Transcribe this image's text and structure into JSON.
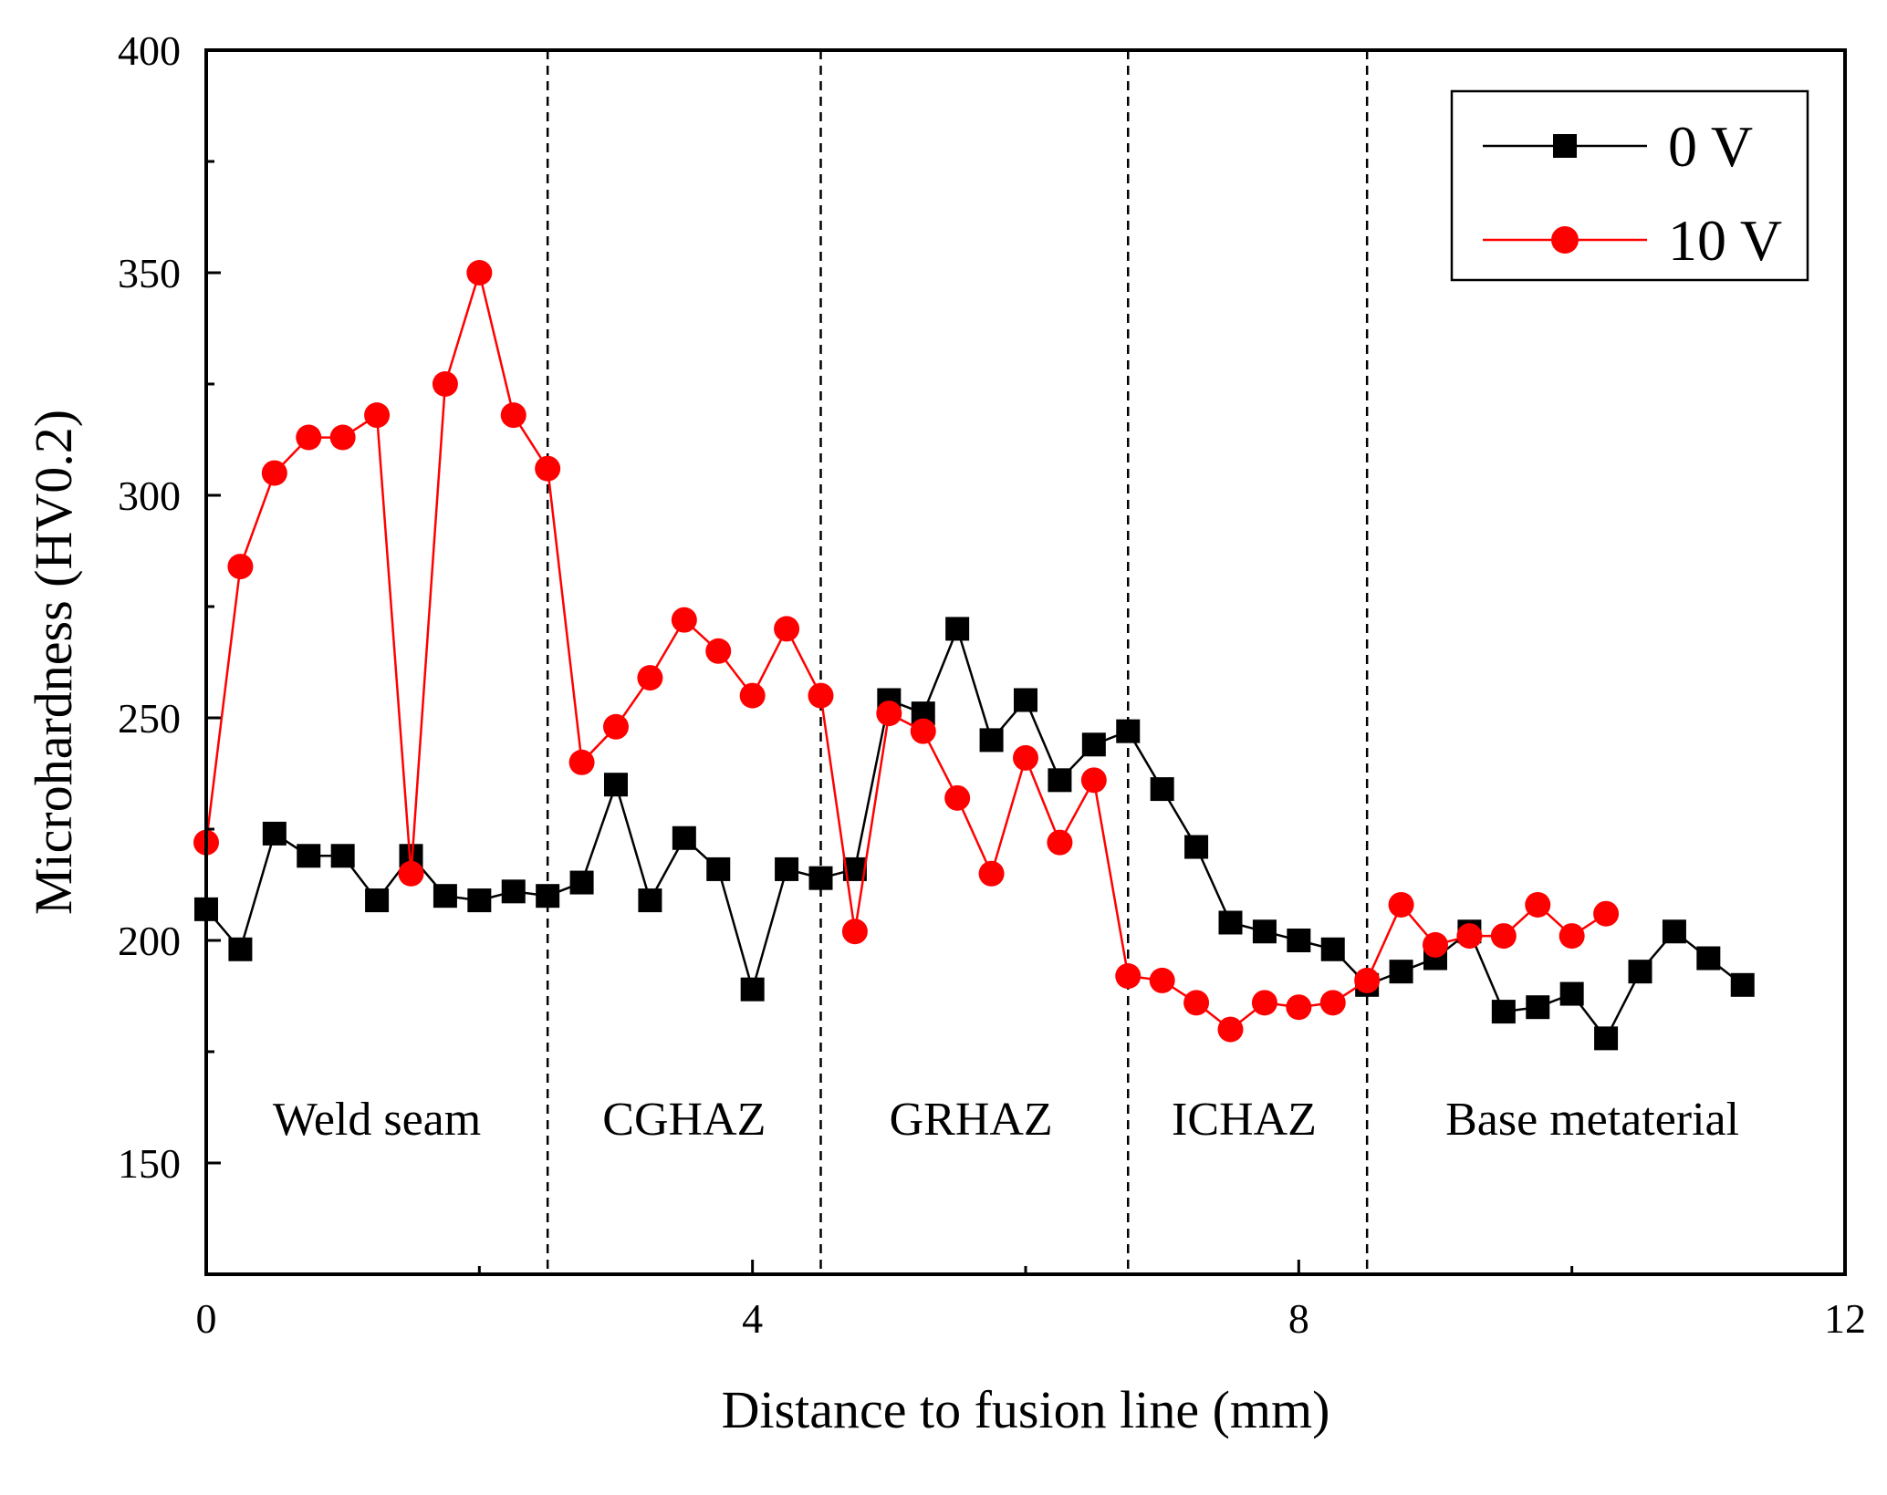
{
  "chart_data": {
    "type": "line",
    "xlabel": "Distance to fusion line (mm)",
    "ylabel": "Microhardness (HV0.2)",
    "xlim": [
      0,
      12
    ],
    "ylim": [
      125,
      400
    ],
    "xticks": [
      0,
      4,
      8,
      12
    ],
    "yticks": [
      150,
      200,
      250,
      300,
      350,
      400
    ],
    "grid": false,
    "legend_position": "top-right",
    "region_boundaries": [
      2.5,
      4.5,
      6.75,
      8.5
    ],
    "regions": [
      {
        "label": "Weld seam",
        "x": 1.25
      },
      {
        "label": "CGHAZ",
        "x": 3.5
      },
      {
        "label": "GRHAZ",
        "x": 5.6
      },
      {
        "label": "ICHAZ",
        "x": 7.6
      },
      {
        "label": "Base metaterial",
        "x": 10.15
      }
    ],
    "region_label_y": 160,
    "series": [
      {
        "name": "0 V",
        "color": "#000000",
        "marker": "square",
        "x": [
          0,
          0.25,
          0.5,
          0.75,
          1.0,
          1.25,
          1.5,
          1.75,
          2.0,
          2.25,
          2.5,
          2.75,
          3.0,
          3.25,
          3.5,
          3.75,
          4.0,
          4.25,
          4.5,
          4.75,
          5.0,
          5.25,
          5.5,
          5.75,
          6.0,
          6.25,
          6.5,
          6.75,
          7.0,
          7.25,
          7.5,
          7.75,
          8.0,
          8.25,
          8.5,
          8.75,
          9.0,
          9.25,
          9.5,
          9.75,
          10.0,
          10.25,
          10.5,
          10.75,
          11.0,
          11.25
        ],
        "y": [
          207,
          198,
          224,
          219,
          219,
          209,
          219,
          210,
          209,
          211,
          210,
          213,
          235,
          209,
          223,
          216,
          189,
          216,
          214,
          216,
          254,
          251,
          270,
          245,
          254,
          236,
          244,
          247,
          234,
          221,
          204,
          202,
          200,
          198,
          190,
          193,
          196,
          202,
          184,
          185,
          188,
          178,
          193,
          202,
          196,
          190
        ]
      },
      {
        "name": "10 V",
        "color": "#ff0000",
        "marker": "circle",
        "x": [
          0,
          0.25,
          0.5,
          0.75,
          1.0,
          1.25,
          1.5,
          1.75,
          2.0,
          2.25,
          2.5,
          2.75,
          3.0,
          3.25,
          3.5,
          3.75,
          4.0,
          4.25,
          4.5,
          4.75,
          5.0,
          5.25,
          5.5,
          5.75,
          6.0,
          6.25,
          6.5,
          6.75,
          7.0,
          7.25,
          7.5,
          7.75,
          8.0,
          8.25,
          8.5,
          8.75,
          9.0,
          9.25,
          9.5,
          9.75,
          10.0,
          10.25
        ],
        "y": [
          222,
          284,
          305,
          313,
          313,
          318,
          215,
          325,
          350,
          318,
          306,
          240,
          248,
          259,
          272,
          265,
          255,
          270,
          255,
          202,
          251,
          247,
          232,
          215,
          241,
          222,
          236,
          192,
          191,
          186,
          180,
          186,
          185,
          186,
          191,
          208,
          199,
          201,
          201,
          208,
          201,
          206
        ]
      }
    ]
  }
}
